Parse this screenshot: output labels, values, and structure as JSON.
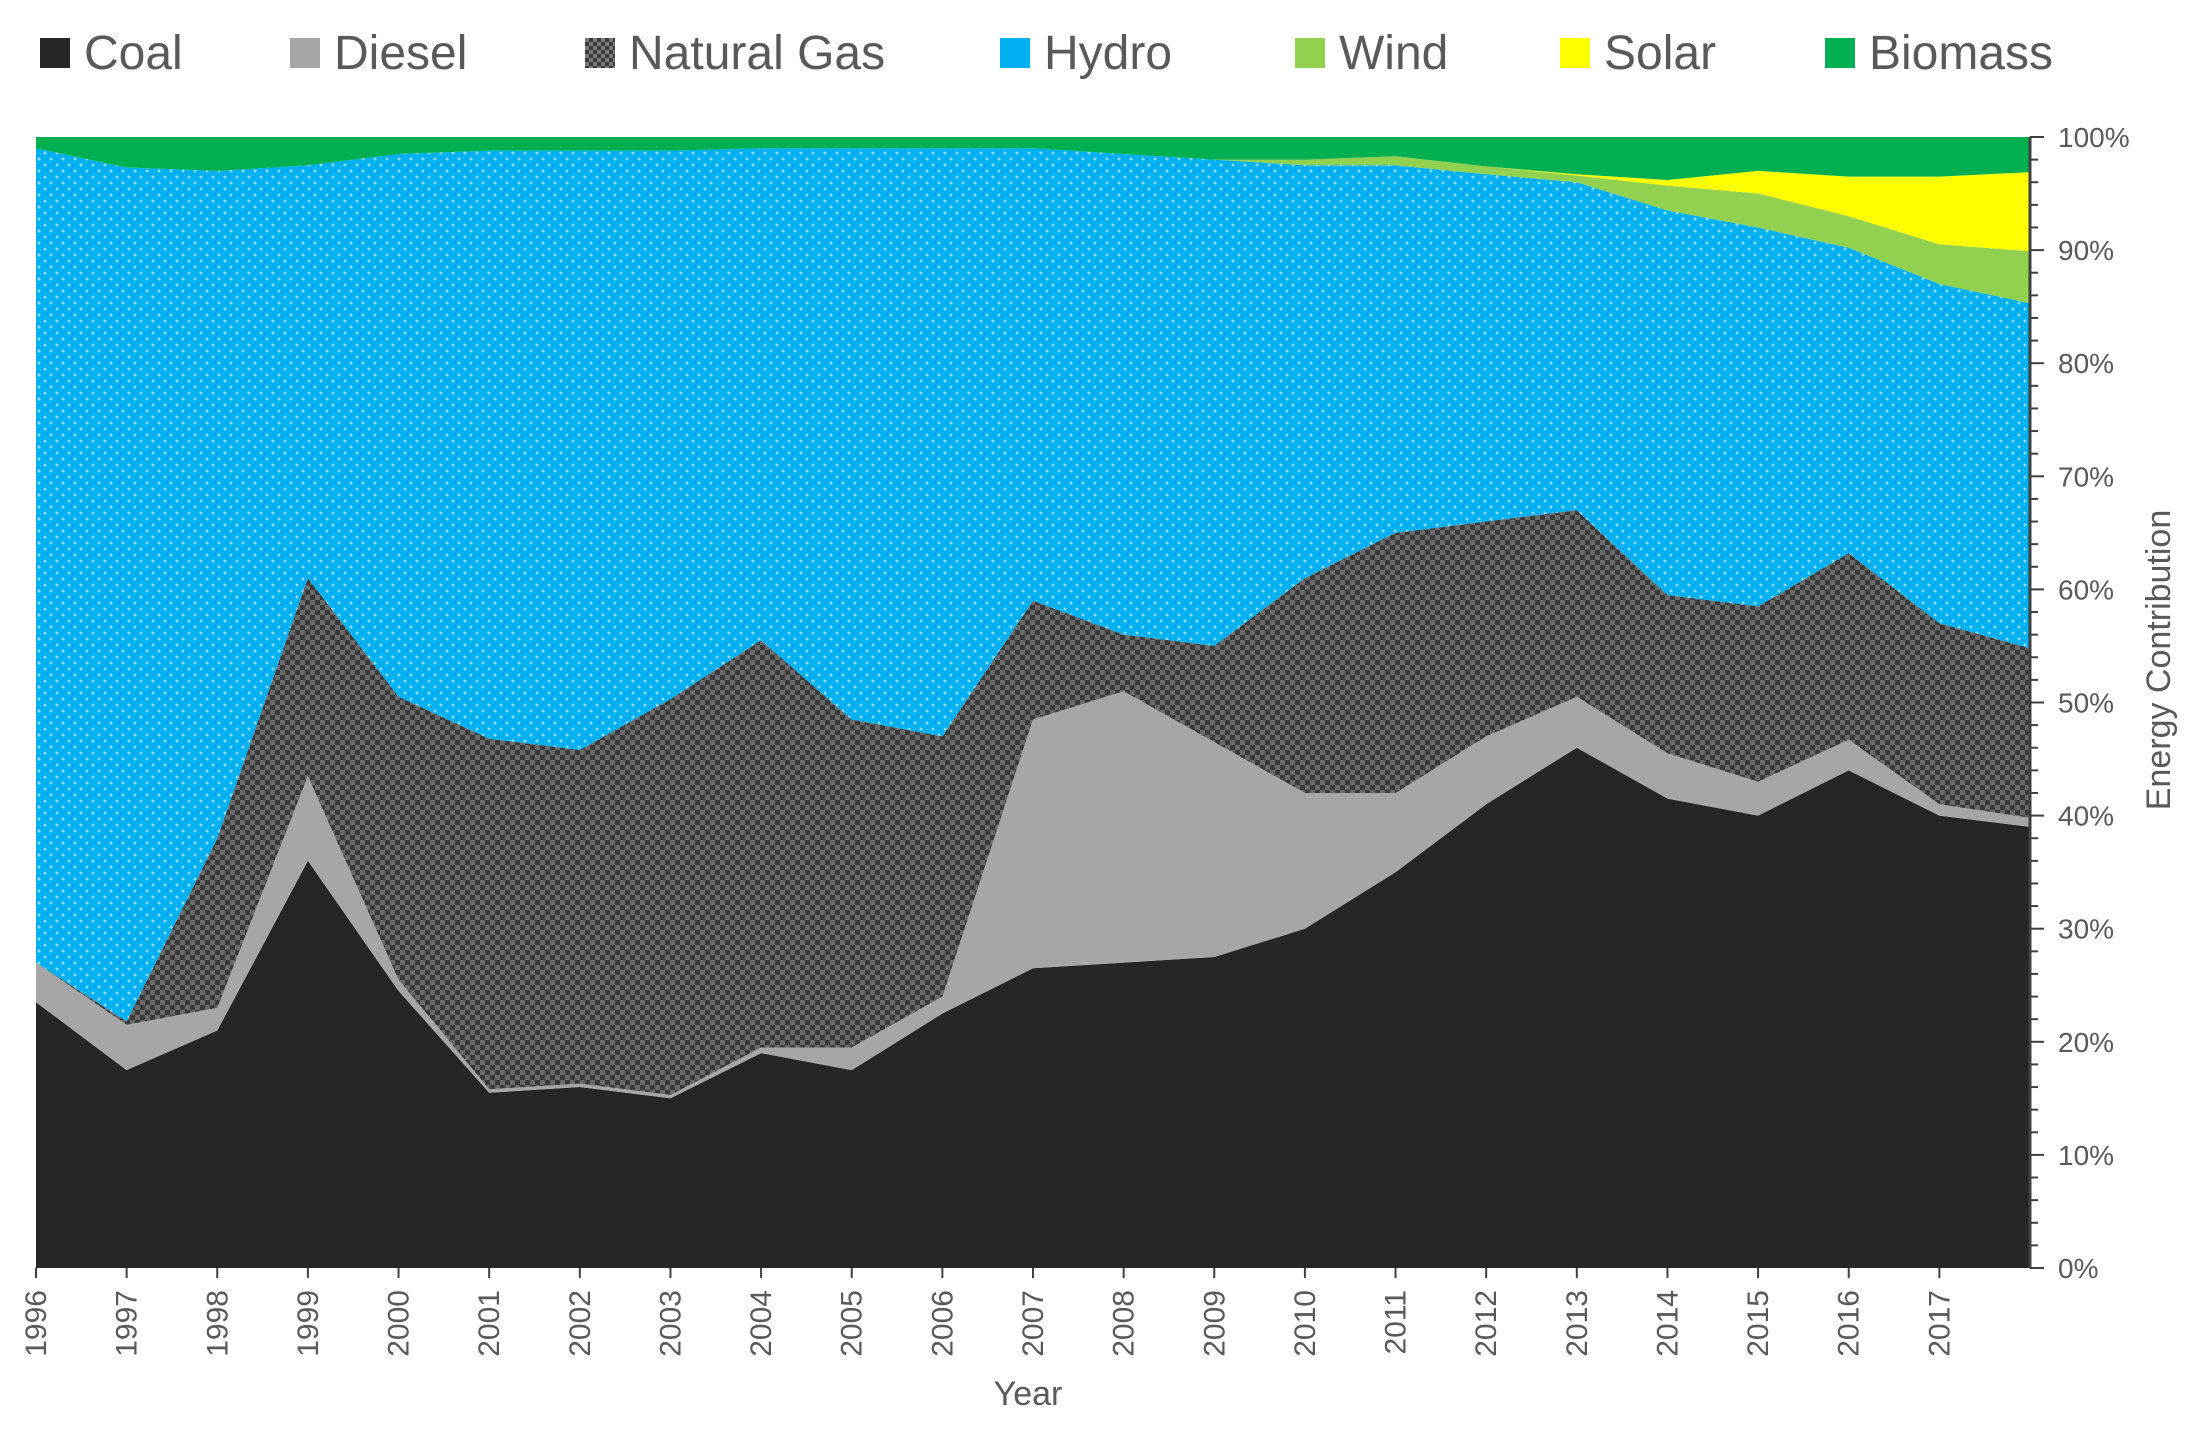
{
  "chart_data": {
    "type": "area",
    "stacked": true,
    "title": "",
    "xlabel": "Year",
    "ylabel": "Energy Contribution",
    "y_axis_side": "right",
    "ylim": [
      0,
      100
    ],
    "y_ticks": [
      "0%",
      "10%",
      "20%",
      "30%",
      "40%",
      "50%",
      "60%",
      "70%",
      "80%",
      "90%",
      "100%"
    ],
    "x_ticks": [
      "1996",
      "1997",
      "1998",
      "1999",
      "2000",
      "2001",
      "2002",
      "2003",
      "2004",
      "2005",
      "2006",
      "2007",
      "2008",
      "2009",
      "2010",
      "2011",
      "2012",
      "2013",
      "2014",
      "2015",
      "2016",
      "2017"
    ],
    "x": [
      1996,
      1997,
      1998,
      1999,
      2000,
      2001,
      2002,
      2003,
      2004,
      2005,
      2006,
      2007,
      2008,
      2009,
      2010,
      2011,
      2012,
      2013,
      2014,
      2015,
      2016,
      2017,
      2018
    ],
    "legend_position": "top",
    "series": [
      {
        "name": "Coal",
        "color": "#262626",
        "pattern": "none",
        "values": [
          23.5,
          17.5,
          21,
          36,
          24.5,
          15.5,
          16,
          15,
          19,
          17.5,
          22.5,
          26.5,
          27,
          27.5,
          30,
          35,
          41,
          46,
          41.5,
          40,
          44,
          40,
          39
        ]
      },
      {
        "name": "Diesel",
        "color": "#a6a6a6",
        "pattern": "none",
        "values": [
          3.5,
          4,
          2,
          7.5,
          1,
          0.3,
          0.3,
          0.3,
          0.5,
          2,
          1.5,
          22,
          24,
          19,
          12,
          7,
          6,
          4.5,
          4,
          3,
          2.7,
          1,
          0.8
        ]
      },
      {
        "name": "Natural Gas",
        "color": "#404040",
        "pattern": "crosshatch",
        "values": [
          0,
          0.3,
          15,
          17.5,
          25,
          31,
          29.5,
          35,
          36,
          29,
          23,
          10.5,
          5,
          8.5,
          19,
          23,
          19,
          16.5,
          14,
          15.5,
          16.5,
          16,
          15
        ]
      },
      {
        "name": "Hydro",
        "color": "#00b0f0",
        "pattern": "dots",
        "values": [
          72,
          75.5,
          59,
          36.5,
          48,
          52,
          53,
          48.5,
          43.5,
          50.5,
          52,
          40,
          42.5,
          43,
          36.5,
          32.5,
          30.7,
          29,
          34,
          33.5,
          27,
          30,
          30.5
        ]
      },
      {
        "name": "Wind",
        "color": "#92d050",
        "pattern": "none",
        "values": [
          0,
          0,
          0,
          0,
          0,
          0,
          0,
          0,
          0,
          0,
          0,
          0,
          0,
          0,
          0.5,
          0.8,
          0.7,
          0.6,
          2.2,
          3,
          2.8,
          3.5,
          4.6
        ]
      },
      {
        "name": "Solar",
        "color": "#ffff00",
        "pattern": "none",
        "values": [
          0,
          0,
          0,
          0,
          0,
          0,
          0,
          0,
          0,
          0,
          0,
          0,
          0,
          0,
          0,
          0,
          0,
          0.1,
          0.5,
          2,
          3.5,
          6,
          7
        ]
      },
      {
        "name": "Biomass",
        "color": "#00b050",
        "pattern": "none",
        "values": [
          1,
          2.7,
          3,
          2.5,
          1.5,
          1.2,
          1.2,
          1.2,
          1,
          1,
          1,
          1,
          1.5,
          2,
          2,
          1.7,
          2.6,
          3.3,
          3.8,
          3,
          3.5,
          3.5,
          3.1
        ]
      }
    ]
  }
}
